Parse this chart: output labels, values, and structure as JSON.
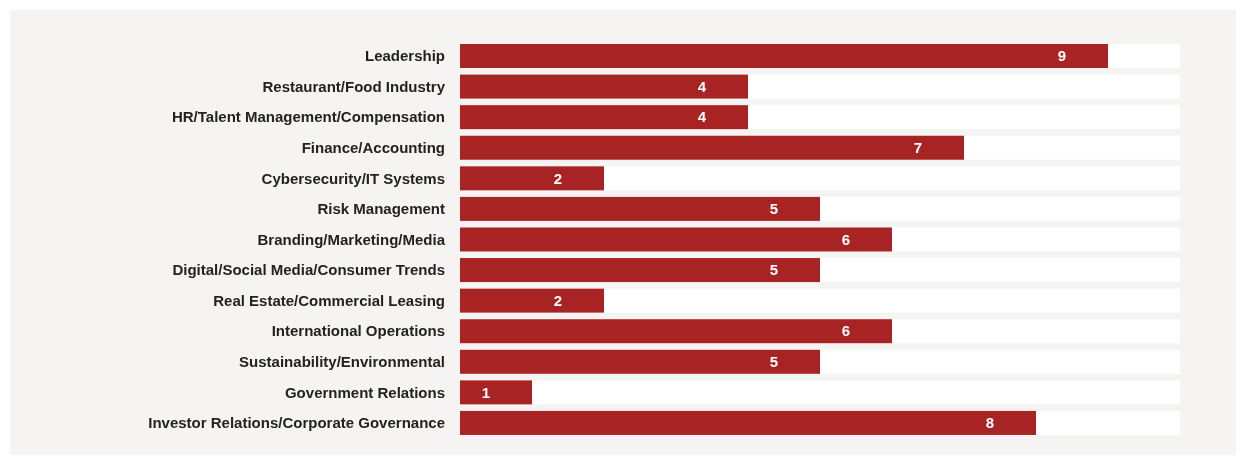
{
  "chart_data": {
    "type": "bar",
    "orientation": "horizontal",
    "categories": [
      "Leadership",
      "Restaurant/Food Industry",
      "HR/Talent Management/Compensation",
      "Finance/Accounting",
      "Cybersecurity/IT Systems",
      "Risk Management",
      "Branding/Marketing/Media",
      "Digital/Social Media/Consumer Trends",
      "Real Estate/Commercial Leasing",
      "International Operations",
      "Sustainability/Environmental",
      "Government Relations",
      "Investor Relations/Corporate Governance"
    ],
    "values": [
      9,
      4,
      4,
      7,
      2,
      5,
      6,
      5,
      2,
      6,
      5,
      1,
      8
    ],
    "color": "#a82424",
    "xlim": [
      0,
      10
    ],
    "data_labels": true
  }
}
